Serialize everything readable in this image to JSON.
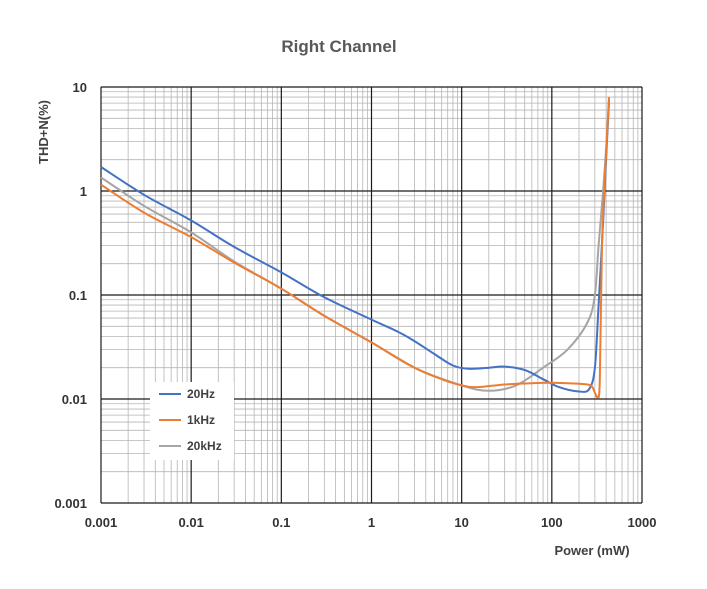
{
  "chart_data": {
    "type": "line",
    "title": "Right Channel",
    "xlabel": "Power (mW)",
    "ylabel": "THD+N(%)",
    "xscale": "log",
    "yscale": "log",
    "xlim": [
      0.001,
      1000
    ],
    "ylim": [
      0.001,
      10
    ],
    "grid": true,
    "legend_position": "bottom-left",
    "x_tick_labels": [
      "0.001",
      "0.01",
      "0.1",
      "1",
      "10",
      "100",
      "1000"
    ],
    "y_tick_labels": [
      "0.001",
      "0.01",
      "0.1",
      "1",
      "10"
    ],
    "series": [
      {
        "name": "20Hz",
        "color": "#4472C4",
        "points": [
          [
            0.001,
            1.7
          ],
          [
            0.003,
            0.92
          ],
          [
            0.01,
            0.52
          ],
          [
            0.03,
            0.29
          ],
          [
            0.1,
            0.165
          ],
          [
            0.3,
            0.095
          ],
          [
            1,
            0.058
          ],
          [
            2,
            0.044
          ],
          [
            3,
            0.036
          ],
          [
            5,
            0.027
          ],
          [
            8,
            0.021
          ],
          [
            12,
            0.0195
          ],
          [
            20,
            0.02
          ],
          [
            30,
            0.0205
          ],
          [
            50,
            0.019
          ],
          [
            80,
            0.0155
          ],
          [
            120,
            0.013
          ],
          [
            200,
            0.0118
          ],
          [
            260,
            0.0125
          ],
          [
            300,
            0.02
          ],
          [
            330,
            0.08
          ],
          [
            370,
            0.5
          ],
          [
            400,
            2.0
          ],
          [
            430,
            7.5
          ]
        ]
      },
      {
        "name": "1kHz",
        "color": "#ED7D31",
        "points": [
          [
            0.001,
            1.15
          ],
          [
            0.003,
            0.62
          ],
          [
            0.01,
            0.36
          ],
          [
            0.03,
            0.205
          ],
          [
            0.1,
            0.115
          ],
          [
            0.3,
            0.063
          ],
          [
            1,
            0.035
          ],
          [
            3,
            0.02
          ],
          [
            6,
            0.0155
          ],
          [
            10,
            0.0135
          ],
          [
            15,
            0.013
          ],
          [
            30,
            0.0138
          ],
          [
            60,
            0.0142
          ],
          [
            100,
            0.0143
          ],
          [
            200,
            0.014
          ],
          [
            270,
            0.0135
          ],
          [
            300,
            0.0115
          ],
          [
            320,
            0.0105
          ],
          [
            340,
            0.015
          ],
          [
            360,
            0.3
          ],
          [
            390,
            1.5
          ],
          [
            430,
            8.0
          ]
        ]
      },
      {
        "name": "20kHz",
        "color": "#A5A5A5",
        "points": [
          [
            0.001,
            1.35
          ],
          [
            0.003,
            0.72
          ],
          [
            0.01,
            0.4
          ],
          [
            0.03,
            0.21
          ],
          [
            0.1,
            0.115
          ],
          [
            0.3,
            0.063
          ],
          [
            1,
            0.035
          ],
          [
            3,
            0.02
          ],
          [
            10,
            0.0135
          ],
          [
            20,
            0.012
          ],
          [
            40,
            0.0135
          ],
          [
            80,
            0.02
          ],
          [
            150,
            0.03
          ],
          [
            250,
            0.055
          ],
          [
            300,
            0.1
          ],
          [
            330,
            0.3
          ],
          [
            370,
            1.0
          ],
          [
            410,
            3.5
          ],
          [
            430,
            7.0
          ]
        ]
      }
    ]
  }
}
